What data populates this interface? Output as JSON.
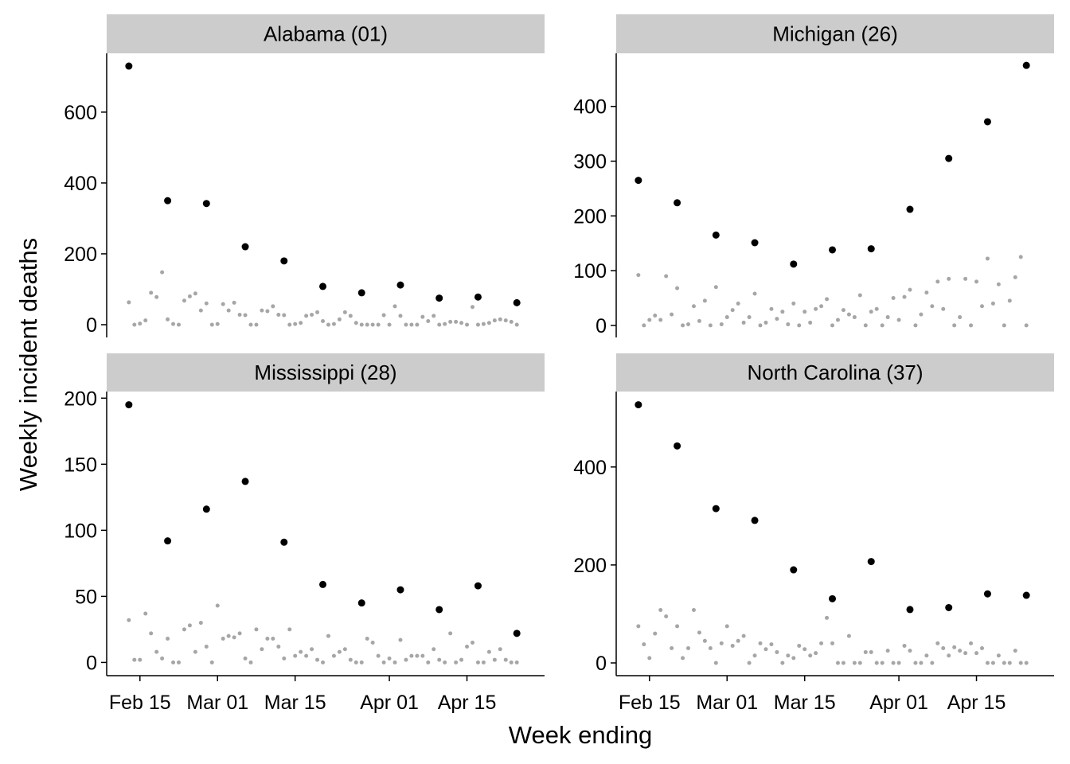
{
  "ylabel": "Weekly incident deaths",
  "xlabel": "Week ending",
  "chart_data": [
    {
      "type": "scatter",
      "title": "Alabama (01)",
      "xlim": [
        "Feb 09",
        "Apr 29"
      ],
      "ylim": [
        -36,
        766
      ],
      "yticks": [
        0,
        200,
        400,
        600
      ],
      "series": [
        {
          "color": "#000000",
          "x": [
            "Feb 13",
            "Feb 20",
            "Feb 27",
            "Mar 06",
            "Mar 13",
            "Mar 20",
            "Mar 27",
            "Apr 03",
            "Apr 10",
            "Apr 17",
            "Apr 24"
          ],
          "values": [
            730,
            350,
            342,
            220,
            180,
            108,
            90,
            112,
            75,
            78,
            62
          ]
        },
        {
          "color": "#a6a6a6",
          "x": [
            "Feb 13",
            "Feb 14",
            "Feb 15",
            "Feb 16",
            "Feb 17",
            "Feb 18",
            "Feb 19",
            "Feb 20",
            "Feb 21",
            "Feb 22",
            "Feb 23",
            "Feb 24",
            "Feb 25",
            "Feb 26",
            "Feb 27",
            "Feb 28",
            "Mar 01",
            "Mar 02",
            "Mar 03",
            "Mar 04",
            "Mar 05",
            "Mar 06",
            "Mar 07",
            "Mar 08",
            "Mar 09",
            "Mar 10",
            "Mar 11",
            "Mar 12",
            "Mar 13",
            "Mar 14",
            "Mar 15",
            "Mar 16",
            "Mar 17",
            "Mar 18",
            "Mar 19",
            "Mar 20",
            "Mar 21",
            "Mar 22",
            "Mar 23",
            "Mar 24",
            "Mar 25",
            "Mar 26",
            "Mar 27",
            "Mar 28",
            "Mar 29",
            "Mar 30",
            "Mar 31",
            "Apr 01",
            "Apr 02",
            "Apr 03",
            "Apr 04",
            "Apr 05",
            "Apr 06",
            "Apr 07",
            "Apr 08",
            "Apr 09",
            "Apr 10",
            "Apr 11",
            "Apr 12",
            "Apr 13",
            "Apr 14",
            "Apr 15",
            "Apr 16",
            "Apr 17",
            "Apr 18",
            "Apr 19",
            "Apr 20",
            "Apr 21",
            "Apr 22",
            "Apr 23",
            "Apr 24"
          ],
          "values": [
            63,
            0,
            3,
            12,
            90,
            78,
            148,
            15,
            2,
            0,
            68,
            80,
            88,
            40,
            60,
            0,
            2,
            58,
            40,
            62,
            28,
            27,
            0,
            0,
            40,
            38,
            52,
            28,
            27,
            0,
            2,
            5,
            25,
            28,
            35,
            10,
            0,
            2,
            15,
            35,
            25,
            5,
            0,
            0,
            0,
            0,
            27,
            0,
            52,
            25,
            0,
            0,
            0,
            22,
            10,
            25,
            0,
            2,
            8,
            8,
            5,
            0,
            50,
            0,
            2,
            5,
            12,
            15,
            12,
            8,
            0
          ]
        }
      ]
    },
    {
      "type": "scatter",
      "title": "Michigan (26)",
      "xlim": [
        "Feb 09",
        "Apr 29"
      ],
      "ylim": [
        -22,
        497
      ],
      "yticks": [
        0,
        100,
        200,
        300,
        400
      ],
      "series": [
        {
          "color": "#000000",
          "x": [
            "Feb 13",
            "Feb 20",
            "Feb 27",
            "Mar 06",
            "Mar 13",
            "Mar 20",
            "Mar 27",
            "Apr 03",
            "Apr 10",
            "Apr 17",
            "Apr 24"
          ],
          "values": [
            265,
            224,
            165,
            151,
            112,
            138,
            140,
            212,
            305,
            372,
            475
          ]
        },
        {
          "color": "#a6a6a6",
          "x": [
            "Feb 13",
            "Feb 14",
            "Feb 15",
            "Feb 16",
            "Feb 17",
            "Feb 18",
            "Feb 19",
            "Feb 20",
            "Feb 21",
            "Feb 22",
            "Feb 23",
            "Feb 24",
            "Feb 25",
            "Feb 26",
            "Feb 27",
            "Feb 28",
            "Mar 01",
            "Mar 02",
            "Mar 03",
            "Mar 04",
            "Mar 05",
            "Mar 06",
            "Mar 07",
            "Mar 08",
            "Mar 09",
            "Mar 10",
            "Mar 11",
            "Mar 12",
            "Mar 13",
            "Mar 14",
            "Mar 15",
            "Mar 16",
            "Mar 17",
            "Mar 18",
            "Mar 19",
            "Mar 20",
            "Mar 21",
            "Mar 22",
            "Mar 23",
            "Mar 24",
            "Mar 25",
            "Mar 26",
            "Mar 27",
            "Mar 28",
            "Mar 29",
            "Mar 30",
            "Mar 31",
            "Apr 01",
            "Apr 02",
            "Apr 03",
            "Apr 04",
            "Apr 05",
            "Apr 06",
            "Apr 07",
            "Apr 08",
            "Apr 09",
            "Apr 10",
            "Apr 11",
            "Apr 12",
            "Apr 13",
            "Apr 14",
            "Apr 15",
            "Apr 16",
            "Apr 17",
            "Apr 18",
            "Apr 19",
            "Apr 20",
            "Apr 21",
            "Apr 22",
            "Apr 23",
            "Apr 24"
          ],
          "values": [
            92,
            0,
            10,
            18,
            10,
            90,
            20,
            68,
            0,
            2,
            35,
            8,
            45,
            0,
            70,
            2,
            15,
            28,
            40,
            5,
            15,
            58,
            0,
            5,
            30,
            12,
            25,
            2,
            40,
            0,
            25,
            5,
            30,
            35,
            48,
            0,
            10,
            28,
            20,
            15,
            55,
            0,
            25,
            30,
            0,
            15,
            50,
            10,
            52,
            65,
            0,
            20,
            60,
            35,
            80,
            30,
            85,
            0,
            15,
            85,
            0,
            80,
            35,
            122,
            40,
            75,
            0,
            45,
            88,
            125,
            0
          ]
        }
      ]
    },
    {
      "type": "scatter",
      "title": "Mississippi (28)",
      "xlim": [
        "Feb 09",
        "Apr 29"
      ],
      "ylim": [
        -10,
        205
      ],
      "yticks": [
        0,
        50,
        100,
        150,
        200
      ],
      "xticks": [
        "Feb 15",
        "Mar 01",
        "Mar 15",
        "Apr 01",
        "Apr 15"
      ],
      "series": [
        {
          "color": "#000000",
          "x": [
            "Feb 13",
            "Feb 20",
            "Feb 27",
            "Mar 06",
            "Mar 13",
            "Mar 20",
            "Mar 27",
            "Apr 03",
            "Apr 10",
            "Apr 17",
            "Apr 24"
          ],
          "values": [
            195,
            92,
            116,
            137,
            91,
            59,
            45,
            55,
            40,
            58,
            22
          ]
        },
        {
          "color": "#a6a6a6",
          "x": [
            "Feb 13",
            "Feb 14",
            "Feb 15",
            "Feb 16",
            "Feb 17",
            "Feb 18",
            "Feb 19",
            "Feb 20",
            "Feb 21",
            "Feb 22",
            "Feb 23",
            "Feb 24",
            "Feb 25",
            "Feb 26",
            "Feb 27",
            "Feb 28",
            "Mar 01",
            "Mar 02",
            "Mar 03",
            "Mar 04",
            "Mar 05",
            "Mar 06",
            "Mar 07",
            "Mar 08",
            "Mar 09",
            "Mar 10",
            "Mar 11",
            "Mar 12",
            "Mar 13",
            "Mar 14",
            "Mar 15",
            "Mar 16",
            "Mar 17",
            "Mar 18",
            "Mar 19",
            "Mar 20",
            "Mar 21",
            "Mar 22",
            "Mar 23",
            "Mar 24",
            "Mar 25",
            "Mar 26",
            "Mar 27",
            "Mar 28",
            "Mar 29",
            "Mar 30",
            "Mar 31",
            "Apr 01",
            "Apr 02",
            "Apr 03",
            "Apr 04",
            "Apr 05",
            "Apr 06",
            "Apr 07",
            "Apr 08",
            "Apr 09",
            "Apr 10",
            "Apr 11",
            "Apr 12",
            "Apr 13",
            "Apr 14",
            "Apr 15",
            "Apr 16",
            "Apr 17",
            "Apr 18",
            "Apr 19",
            "Apr 20",
            "Apr 21",
            "Apr 22",
            "Apr 23",
            "Apr 24"
          ],
          "values": [
            32,
            2,
            2,
            37,
            22,
            8,
            3,
            18,
            0,
            0,
            25,
            28,
            8,
            30,
            12,
            0,
            43,
            18,
            20,
            19,
            22,
            3,
            0,
            25,
            10,
            18,
            18,
            12,
            3,
            25,
            5,
            8,
            5,
            10,
            2,
            0,
            20,
            5,
            8,
            10,
            2,
            0,
            0,
            18,
            15,
            5,
            0,
            3,
            0,
            17,
            2,
            5,
            5,
            5,
            0,
            10,
            2,
            0,
            22,
            0,
            2,
            12,
            15,
            0,
            0,
            8,
            2,
            10,
            2,
            0,
            0
          ]
        }
      ]
    },
    {
      "type": "scatter",
      "title": "North Carolina (37)",
      "xlim": [
        "Feb 09",
        "Apr 29"
      ],
      "ylim": [
        -26,
        554
      ],
      "yticks": [
        0,
        200,
        400
      ],
      "xticks": [
        "Feb 15",
        "Mar 01",
        "Mar 15",
        "Apr 01",
        "Apr 15"
      ],
      "series": [
        {
          "color": "#000000",
          "x": [
            "Feb 13",
            "Feb 20",
            "Feb 27",
            "Mar 06",
            "Mar 13",
            "Mar 20",
            "Mar 27",
            "Apr 03",
            "Apr 10",
            "Apr 17",
            "Apr 24"
          ],
          "values": [
            527,
            443,
            315,
            291,
            190,
            131,
            207,
            109,
            113,
            141,
            138
          ]
        },
        {
          "color": "#a6a6a6",
          "x": [
            "Feb 13",
            "Feb 14",
            "Feb 15",
            "Feb 16",
            "Feb 17",
            "Feb 18",
            "Feb 19",
            "Feb 20",
            "Feb 21",
            "Feb 22",
            "Feb 23",
            "Feb 24",
            "Feb 25",
            "Feb 26",
            "Feb 27",
            "Feb 28",
            "Mar 01",
            "Mar 02",
            "Mar 03",
            "Mar 04",
            "Mar 05",
            "Mar 06",
            "Mar 07",
            "Mar 08",
            "Mar 09",
            "Mar 10",
            "Mar 11",
            "Mar 12",
            "Mar 13",
            "Mar 14",
            "Mar 15",
            "Mar 16",
            "Mar 17",
            "Mar 18",
            "Mar 19",
            "Mar 20",
            "Mar 21",
            "Mar 22",
            "Mar 23",
            "Mar 24",
            "Mar 25",
            "Mar 26",
            "Mar 27",
            "Mar 28",
            "Mar 29",
            "Mar 30",
            "Mar 31",
            "Apr 01",
            "Apr 02",
            "Apr 03",
            "Apr 04",
            "Apr 05",
            "Apr 06",
            "Apr 07",
            "Apr 08",
            "Apr 09",
            "Apr 10",
            "Apr 11",
            "Apr 12",
            "Apr 13",
            "Apr 14",
            "Apr 15",
            "Apr 16",
            "Apr 17",
            "Apr 18",
            "Apr 19",
            "Apr 20",
            "Apr 21",
            "Apr 22",
            "Apr 23",
            "Apr 24"
          ],
          "values": [
            75,
            38,
            10,
            60,
            108,
            95,
            30,
            75,
            10,
            30,
            108,
            62,
            45,
            30,
            0,
            40,
            75,
            35,
            45,
            55,
            0,
            15,
            40,
            28,
            38,
            22,
            0,
            15,
            10,
            35,
            28,
            15,
            20,
            40,
            92,
            40,
            0,
            0,
            55,
            0,
            0,
            22,
            22,
            0,
            0,
            25,
            0,
            0,
            35,
            25,
            0,
            0,
            15,
            0,
            40,
            30,
            15,
            32,
            25,
            20,
            40,
            20,
            30,
            0,
            0,
            15,
            0,
            0,
            25,
            0,
            0
          ]
        }
      ]
    }
  ]
}
